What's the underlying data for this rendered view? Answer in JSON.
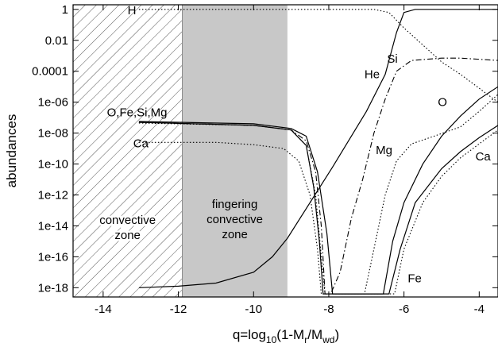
{
  "chart_data": {
    "type": "line",
    "xlabel": "q=log10(1-Mr/Mwd)",
    "xlabel_parts": {
      "base": "q=log",
      "sub1": "10",
      "mid": "(1-M",
      "sub2": "r",
      "mid2": "/M",
      "sub3": "wd",
      "end": ")"
    },
    "ylabel": "abundances",
    "xlim": [
      -14.8,
      -3.5
    ],
    "ylim_log10": [
      -18.6,
      0.3
    ],
    "y_log_scale": true,
    "x_ticks": [
      -14,
      -12,
      -10,
      -8,
      -6,
      -4
    ],
    "x_tick_labels": [
      "-14",
      "-12",
      "-10",
      "-8",
      "-6",
      "-4"
    ],
    "y_ticks_log10": [
      0,
      -2,
      -4,
      -6,
      -8,
      -10,
      -12,
      -14,
      -16,
      -18
    ],
    "y_tick_labels": [
      "1",
      "0.01",
      "0.0001",
      "1e-06",
      "1e-08",
      "1e-10",
      "1e-12",
      "1e-14",
      "1e-16",
      "1e-18"
    ],
    "regions": [
      {
        "name": "convective zone",
        "x_start": -14.8,
        "x_end": -11.9,
        "style": "hatched",
        "label_lines": [
          "convective",
          "zone"
        ]
      },
      {
        "name": "fingering convective zone",
        "x_start": -11.9,
        "x_end": -9.1,
        "style": "gray",
        "label_lines": [
          "fingering",
          "convective",
          "zone"
        ]
      }
    ],
    "series": [
      {
        "name": "H",
        "style": "dotted",
        "points_log10": [
          [
            -13.05,
            0
          ],
          [
            -6.8,
            0
          ],
          [
            -6.4,
            -0.2
          ],
          [
            -6.0,
            -1.2
          ],
          [
            -5.5,
            -2.3
          ],
          [
            -5.0,
            -3.4
          ],
          [
            -4.5,
            -4.2
          ],
          [
            -4.0,
            -5.1
          ],
          [
            -3.5,
            -6.0
          ]
        ]
      },
      {
        "name": "He",
        "style": "solid",
        "points_log10": [
          [
            -13.05,
            -18.0
          ],
          [
            -12.0,
            -17.9
          ],
          [
            -11.0,
            -17.7
          ],
          [
            -10.0,
            -17.0
          ],
          [
            -9.5,
            -16.0
          ],
          [
            -9.1,
            -14.8
          ],
          [
            -8.5,
            -12.5
          ],
          [
            -7.9,
            -10.2
          ],
          [
            -7.5,
            -8.6
          ],
          [
            -7.0,
            -6.6
          ],
          [
            -6.5,
            -4.2
          ],
          [
            -6.2,
            -1.5
          ],
          [
            -6.0,
            -0.2
          ],
          [
            -5.7,
            0
          ],
          [
            -3.5,
            0
          ]
        ]
      },
      {
        "name": "Si",
        "style": "dash-dot",
        "points_log10": [
          [
            -13.05,
            -7.3
          ],
          [
            -10.0,
            -7.5
          ],
          [
            -9.0,
            -7.8
          ],
          [
            -8.6,
            -8.5
          ],
          [
            -8.35,
            -10.5
          ],
          [
            -8.2,
            -14.0
          ],
          [
            -8.1,
            -18.4
          ],
          [
            -7.95,
            -18.4
          ],
          [
            -7.7,
            -17.0
          ],
          [
            -7.4,
            -13.5
          ],
          [
            -7.1,
            -11.0
          ],
          [
            -6.8,
            -8.0
          ],
          [
            -6.5,
            -5.8
          ],
          [
            -6.2,
            -4.0
          ],
          [
            -5.8,
            -3.3
          ],
          [
            -5.0,
            -3.15
          ],
          [
            -4.5,
            -3.15
          ],
          [
            -3.5,
            -3.3
          ]
        ]
      },
      {
        "name": "O",
        "style": "solid",
        "points_log10": [
          [
            -13.05,
            -7.25
          ],
          [
            -10.0,
            -7.4
          ],
          [
            -9.0,
            -7.7
          ],
          [
            -8.6,
            -8.2
          ],
          [
            -8.3,
            -10.5
          ],
          [
            -8.05,
            -14.5
          ],
          [
            -7.9,
            -18.4
          ],
          [
            -6.55,
            -18.4
          ],
          [
            -6.3,
            -15.0
          ],
          [
            -6.0,
            -12.5
          ],
          [
            -5.5,
            -10.0
          ],
          [
            -5.0,
            -8.2
          ],
          [
            -4.5,
            -6.9
          ],
          [
            -4.0,
            -5.8
          ],
          [
            -3.5,
            -5.0
          ]
        ]
      },
      {
        "name": "Mg",
        "style": "dotted",
        "points_log10": [
          [
            -13.05,
            -7.35
          ],
          [
            -10.0,
            -7.5
          ],
          [
            -9.0,
            -7.8
          ],
          [
            -8.6,
            -8.8
          ],
          [
            -8.35,
            -12.0
          ],
          [
            -8.2,
            -16.0
          ],
          [
            -8.1,
            -18.4
          ],
          [
            -7.05,
            -18.4
          ],
          [
            -6.8,
            -15.5
          ],
          [
            -6.5,
            -12.0
          ],
          [
            -6.2,
            -9.8
          ],
          [
            -5.8,
            -8.7
          ],
          [
            -5.2,
            -8.2
          ],
          [
            -4.5,
            -7.6
          ],
          [
            -4.0,
            -6.6
          ],
          [
            -3.5,
            -5.5
          ]
        ]
      },
      {
        "name": "Fe",
        "style": "solid",
        "points_log10": [
          [
            -13.05,
            -7.3
          ],
          [
            -10.0,
            -7.5
          ],
          [
            -9.0,
            -7.8
          ],
          [
            -8.6,
            -8.8
          ],
          [
            -8.4,
            -11.5
          ],
          [
            -8.25,
            -15.0
          ],
          [
            -8.15,
            -18.4
          ],
          [
            -6.4,
            -18.4
          ],
          [
            -6.1,
            -15.5
          ],
          [
            -5.7,
            -12.5
          ],
          [
            -5.0,
            -10.3
          ],
          [
            -4.5,
            -9.2
          ],
          [
            -4.0,
            -8.3
          ],
          [
            -3.5,
            -7.5
          ]
        ]
      },
      {
        "name": "Ca",
        "style": "dotted",
        "points_log10": [
          [
            -13.05,
            -8.6
          ],
          [
            -11.0,
            -8.6
          ],
          [
            -10.0,
            -8.75
          ],
          [
            -9.2,
            -9.0
          ],
          [
            -8.8,
            -9.8
          ],
          [
            -8.5,
            -12.0
          ],
          [
            -8.3,
            -15.5
          ],
          [
            -8.2,
            -18.4
          ],
          [
            -6.25,
            -18.4
          ],
          [
            -6.0,
            -15.5
          ],
          [
            -5.5,
            -12.5
          ],
          [
            -5.0,
            -10.8
          ],
          [
            -4.5,
            -9.6
          ],
          [
            -4.0,
            -8.7
          ],
          [
            -3.5,
            -7.8
          ]
        ]
      }
    ],
    "labels": [
      {
        "text": "H",
        "x": -13.35,
        "y_log10": -0.05
      },
      {
        "text": "He",
        "x": -7.05,
        "y_log10": -4.2
      },
      {
        "text": "Si",
        "x": -6.45,
        "y_log10": -3.2
      },
      {
        "text": "O",
        "x": -5.1,
        "y_log10": -6.0
      },
      {
        "text": "O,Fe,Si,Mg",
        "x": -13.9,
        "y_log10": -6.65
      },
      {
        "text": "Ca",
        "x": -13.2,
        "y_log10": -8.65
      },
      {
        "text": "Mg",
        "x": -6.75,
        "y_log10": -9.1
      },
      {
        "text": "Ca",
        "x": -4.1,
        "y_log10": -9.5
      },
      {
        "text": "Fe",
        "x": -5.9,
        "y_log10": -17.4
      }
    ]
  }
}
